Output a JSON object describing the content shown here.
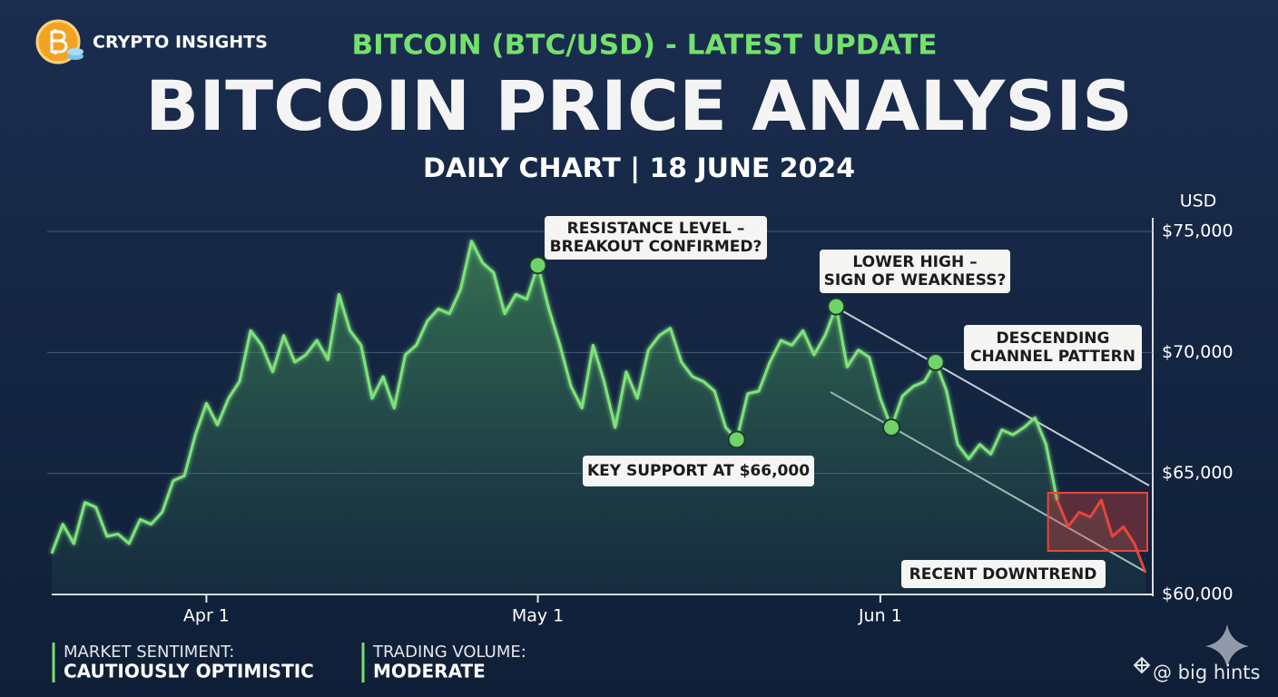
{
  "brand": "CRYPTO INSIGHTS",
  "watermark": "@ big hints",
  "footer": [
    {
      "label": "MARKET SENTIMENT:",
      "value": "CAUTIOUSLY OPTIMISTIC"
    },
    {
      "label": "TRADING VOLUME:",
      "value": "MODERATE"
    }
  ],
  "chart_data": {
    "type": "line",
    "kicker": "BITCOIN (BTC/USD) - LATEST UPDATE",
    "title": "BITCOIN PRICE ANALYSIS",
    "subtitle": "DAILY CHART | 18 JUNE 2024",
    "y_label": "USD",
    "x": [
      "Mar 18",
      "Mar 19",
      "Mar 20",
      "Mar 21",
      "Mar 22",
      "Mar 23",
      "Mar 24",
      "Mar 25",
      "Mar 26",
      "Mar 27",
      "Mar 28",
      "Mar 29",
      "Mar 30",
      "Mar 31",
      "Apr 1",
      "Apr 2",
      "Apr 3",
      "Apr 4",
      "Apr 5",
      "Apr 6",
      "Apr 7",
      "Apr 8",
      "Apr 9",
      "Apr 10",
      "Apr 11",
      "Apr 12",
      "Apr 13",
      "Apr 14",
      "Apr 15",
      "Apr 16",
      "Apr 17",
      "Apr 18",
      "Apr 19",
      "Apr 20",
      "Apr 21",
      "Apr 22",
      "Apr 23",
      "Apr 24",
      "Apr 25",
      "Apr 26",
      "Apr 27",
      "Apr 28",
      "Apr 29",
      "Apr 30",
      "May 1",
      "May 2",
      "May 3",
      "May 4",
      "May 5",
      "May 6",
      "May 7",
      "May 8",
      "May 9",
      "May 10",
      "May 11",
      "May 12",
      "May 13",
      "May 14",
      "May 15",
      "May 16",
      "May 17",
      "May 18",
      "May 19",
      "May 20",
      "May 21",
      "May 22",
      "May 23",
      "May 24",
      "May 25",
      "May 26",
      "May 27",
      "May 28",
      "May 29",
      "May 30",
      "May 31",
      "Jun 1",
      "Jun 2",
      "Jun 3",
      "Jun 4",
      "Jun 5",
      "Jun 6",
      "Jun 7",
      "Jun 8",
      "Jun 9",
      "Jun 10",
      "Jun 11",
      "Jun 12",
      "Jun 13",
      "Jun 14",
      "Jun 15",
      "Jun 16",
      "Jun 17",
      "Jun 18",
      "Jun 19",
      "Jun 20",
      "Jun 21",
      "Jun 22",
      "Jun 23",
      "Jun 24",
      "Jun 25"
    ],
    "values": [
      61700,
      62900,
      62100,
      63800,
      63600,
      62400,
      62500,
      62100,
      63100,
      62900,
      63400,
      64700,
      64900,
      66600,
      67900,
      67000,
      68100,
      68800,
      70900,
      70300,
      69200,
      70700,
      69600,
      69900,
      70500,
      69700,
      72400,
      70900,
      70300,
      68100,
      69000,
      67700,
      69900,
      70300,
      71300,
      71800,
      71600,
      72600,
      74600,
      73700,
      73300,
      71600,
      72400,
      72200,
      73600,
      71800,
      70300,
      68600,
      67700,
      70300,
      68800,
      66900,
      69200,
      68100,
      70100,
      70700,
      71000,
      69600,
      69000,
      68800,
      68400,
      66900,
      66400,
      68300,
      68400,
      69600,
      70500,
      70300,
      70900,
      69900,
      70700,
      71900,
      69400,
      70100,
      69800,
      68100,
      66900,
      68200,
      68600,
      68800,
      69600,
      68400,
      66200,
      65600,
      66200,
      65800,
      66800,
      66600,
      66900,
      67300,
      66200,
      63900,
      62800,
      63400,
      63200,
      63900,
      62400,
      62800,
      62100,
      60900
    ],
    "color": "#7ee37a",
    "ylim": [
      60000,
      75000
    ],
    "yticks": [
      {
        "value": 60000,
        "label": "$60,000"
      },
      {
        "value": 65000,
        "label": "$65,000"
      },
      {
        "value": 70000,
        "label": "$70,000"
      },
      {
        "value": 75000,
        "label": "$75,000"
      }
    ],
    "xticks": [
      "Apr 1",
      "May 1",
      "Jun 1"
    ],
    "grid": true,
    "markers": [
      "May 1",
      "May 19",
      "May 28",
      "Jun 2",
      "Jun 6"
    ],
    "annotations": [
      {
        "text": [
          "RESISTANCE LEVEL –",
          "BREAKOUT CONFIRMED?"
        ]
      },
      {
        "text": [
          "LOWER HIGH –",
          "SIGN OF WEAKNESS?"
        ]
      },
      {
        "text": [
          "DESCENDING",
          "CHANNEL PATTERN"
        ]
      },
      {
        "text": [
          "KEY SUPPORT AT $66,000"
        ]
      }
    ],
    "downtrend": {
      "label": "RECENT DOWNTREND",
      "from": "Jun 17",
      "color": "#e8453c"
    }
  }
}
